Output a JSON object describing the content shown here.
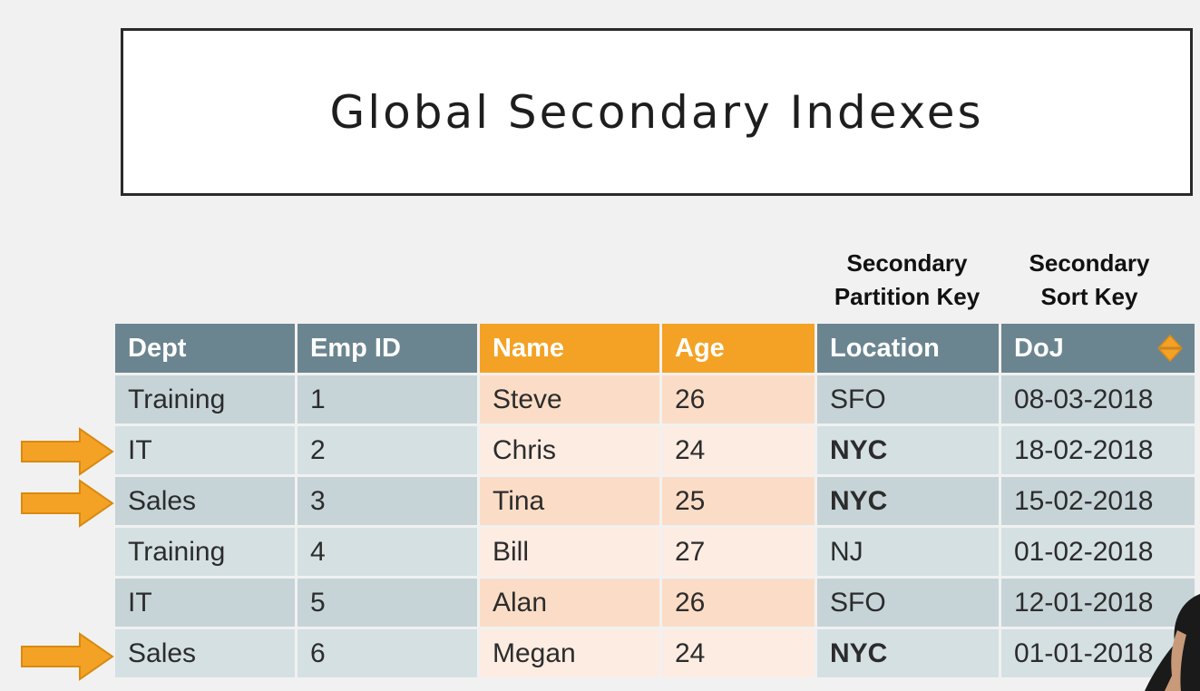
{
  "slide": {
    "title": "Global Secondary Indexes"
  },
  "labels": {
    "partition_key": [
      "Secondary",
      "Partition Key"
    ],
    "sort_key": [
      "Secondary",
      "Sort Key"
    ]
  },
  "table": {
    "headers": [
      "Dept",
      "Emp ID",
      "Name",
      "Age",
      "Location",
      "DoJ"
    ],
    "rows": [
      [
        "Training",
        "1",
        "Steve",
        "26",
        "SFO",
        "08-03-2018"
      ],
      [
        "IT",
        "2",
        "Chris",
        "24",
        "NYC",
        "18-02-2018"
      ],
      [
        "Sales",
        "3",
        "Tina",
        "25",
        "NYC",
        "15-02-2018"
      ],
      [
        "Training",
        "4",
        "Bill",
        "27",
        "NJ",
        "01-02-2018"
      ],
      [
        "IT",
        "5",
        "Alan",
        "26",
        "SFO",
        "12-01-2018"
      ],
      [
        "Sales",
        "6",
        "Megan",
        "24",
        "NYC",
        "01-01-2018"
      ]
    ],
    "highlighted_rows": [
      2,
      3,
      6
    ]
  },
  "colors": {
    "header_blue": "#6b8590",
    "header_orange": "#f4a225",
    "arrow": "#f4a225"
  },
  "icons": {
    "sort": "sort-icon",
    "arrow": "arrow-right-icon"
  }
}
